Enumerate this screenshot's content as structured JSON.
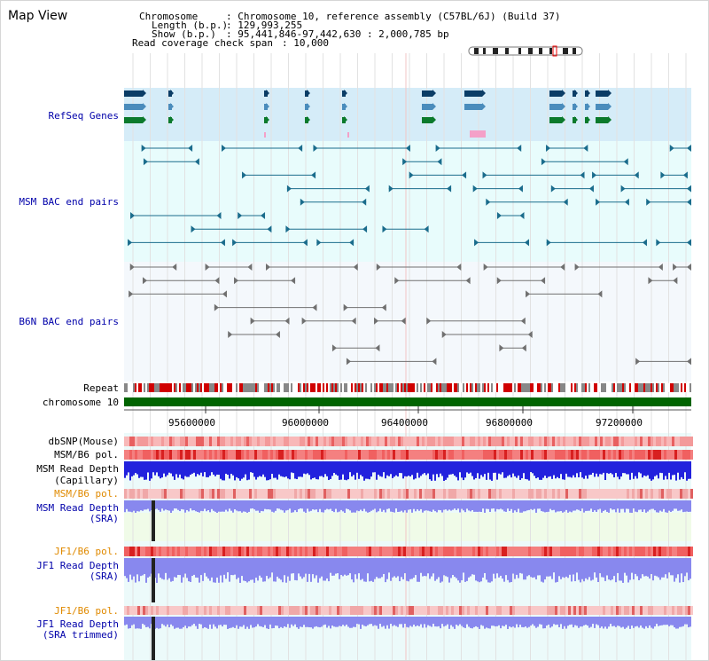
{
  "view_title": "Map View",
  "header": {
    "chromosome_label": "Chromosome",
    "chromosome_value": ": Chromosome 10, reference assembly (C57BL/6J) (Build 37)",
    "length_label": "Length (b.p.)",
    "length_value": ": 129,993,255",
    "show_label": "Show (b.p.)",
    "show_value": ": 95,441,846-97,442,630 : 2,000,785 bp",
    "coverage_label": "Read coverage check span",
    "coverage_value": ": 10,000"
  },
  "tracks": {
    "refseq": "RefSeq Genes",
    "msm_bac": "MSM BAC end pairs",
    "b6n_bac": "B6N BAC end pairs",
    "repeat": "Repeat",
    "chromosome": "chromosome 10",
    "dbsnp": "dbSNP(Mouse)",
    "msm_b6_pol_1": "MSM/B6 pol.",
    "msm_read_depth_cap_1": "MSM Read Depth",
    "msm_read_depth_cap_2": "(Capillary)",
    "msm_b6_pol_2": "MSM/B6 pol.",
    "msm_read_depth_sra_1": "MSM Read Depth",
    "msm_read_depth_sra_2": "(SRA)",
    "jf1_b6_pol_1": "JF1/B6 pol.",
    "jf1_read_depth_sra_1": "JF1 Read Depth",
    "jf1_read_depth_sra_2": "(SRA)",
    "jf1_b6_pol_2": "JF1/B6 pol.",
    "jf1_read_depth_trim_1": "JF1 Read Depth",
    "jf1_read_depth_trim_2": "(SRA trimmed)"
  },
  "axis": {
    "ticks": [
      "95600000",
      "96000000",
      "96400000",
      "96800000",
      "97200000"
    ]
  },
  "colors": {
    "label_blue": "#0000aa",
    "label_orange": "#e08a00",
    "refseq_bg": "#d5ecf8",
    "msm_bac_bg": "#e8fcfc",
    "b6n_bac_bg": "#f4f8fc",
    "msm_bac": "#1a6c8c",
    "b6n_bac": "#707070",
    "chromosome_bar": "#006400",
    "depth_blue": "#2222dd",
    "depth_light": "#8888ee"
  }
}
